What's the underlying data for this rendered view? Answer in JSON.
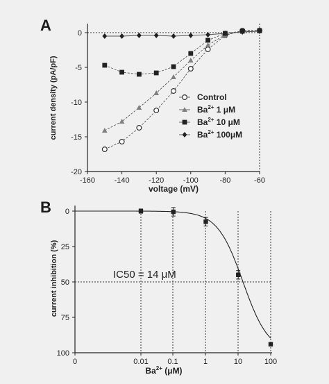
{
  "chart_data": [
    {
      "panel": "A",
      "type": "line",
      "xlabel": "voltage (mV)",
      "ylabel": "current density (pA/pF)",
      "xlim": [
        -160,
        -60
      ],
      "ylim": [
        -20,
        0
      ],
      "xticks": [
        -160,
        -140,
        -120,
        -100,
        -80,
        -60
      ],
      "yticks": [
        0,
        -5,
        -10,
        -15,
        -20
      ],
      "x": [
        -150,
        -140,
        -130,
        -120,
        -110,
        -100,
        -90,
        -80,
        -70,
        -60
      ],
      "legend_placement": "bottom-right",
      "series": [
        {
          "name": "Control",
          "marker": "open-circle",
          "color": "#333333",
          "values": [
            -16.8,
            -15.7,
            -13.7,
            -11.2,
            -8.4,
            -5.2,
            -2.4,
            -0.4,
            0.3,
            0.3
          ]
        },
        {
          "name": "Ba2+ 1 μM",
          "marker": "triangle",
          "color": "#7f7f7f",
          "values": [
            -14.1,
            -12.8,
            -10.8,
            -8.7,
            -6.4,
            -4.0,
            -1.8,
            -0.3,
            0.2,
            0.2
          ]
        },
        {
          "name": "Ba2+ 10 μM",
          "marker": "square",
          "color": "#222222",
          "values": [
            -4.7,
            -5.7,
            -6.0,
            -5.8,
            -4.9,
            -3.0,
            -1.1,
            -0.1,
            0.2,
            0.3
          ]
        },
        {
          "name": "Ba2+ 100μM",
          "marker": "diamond",
          "color": "#222222",
          "values": [
            -0.5,
            -0.5,
            -0.4,
            -0.4,
            -0.5,
            -0.4,
            -0.3,
            -0.1,
            0.1,
            0.2
          ]
        }
      ],
      "legend_labels": [
        {
          "pre": "Control",
          "sup": "",
          "post": ""
        },
        {
          "pre": "Ba",
          "sup": "2+",
          "post": " 1 μM"
        },
        {
          "pre": "Ba",
          "sup": "2+",
          "post": " 10 μM"
        },
        {
          "pre": "Ba",
          "sup": "2+",
          "post": " 100μM"
        }
      ]
    },
    {
      "panel": "B",
      "type": "line",
      "xscale": "log",
      "xlabel_pre": "Ba",
      "xlabel_sup": "2+",
      "xlabel_post": " (μM)",
      "ylabel": "current inhibition (%)",
      "ylim": [
        0,
        100
      ],
      "y_inverted": true,
      "xticks": [
        "0",
        "0.01",
        "0.1",
        "1",
        "10",
        "100"
      ],
      "yticks": [
        0,
        25,
        50,
        75,
        100
      ],
      "annotation": "IC50 =  14 μM",
      "ic50": 14,
      "points": [
        {
          "x": 0.01,
          "y": 0,
          "err": 1.5
        },
        {
          "x": 0.1,
          "y": 0.5,
          "err": 3
        },
        {
          "x": 1,
          "y": 7.5,
          "err": 3
        },
        {
          "x": 10,
          "y": 45,
          "err": 3
        },
        {
          "x": 100,
          "y": 94,
          "err": 0.5
        }
      ]
    }
  ]
}
